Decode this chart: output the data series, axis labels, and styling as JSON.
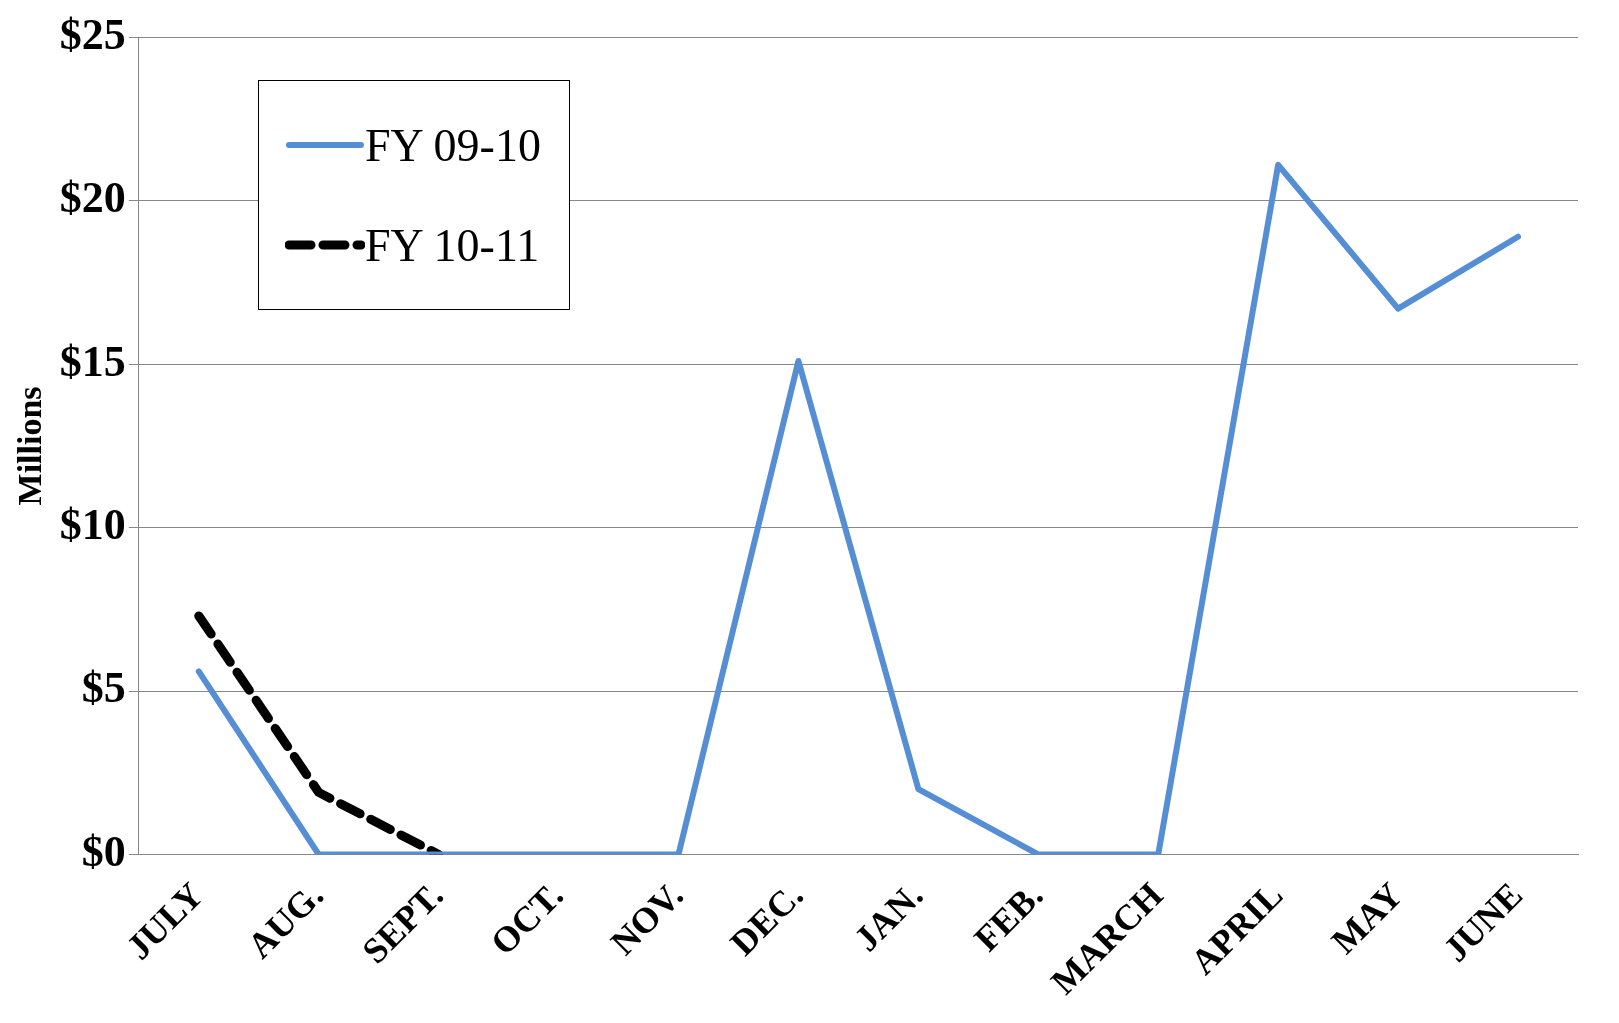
{
  "chart_data": {
    "type": "line",
    "ylabel": "Millions",
    "categories": [
      "JULY",
      "AUG.",
      "SEPT.",
      "OCT.",
      "NOV.",
      "DEC.",
      "JAN.",
      "FEB.",
      "MARCH",
      "APRIL",
      "MAY",
      "JUNE"
    ],
    "series": [
      {
        "name": "FY 09-10",
        "color": "#558ed5",
        "values": [
          5.6,
          0,
          0,
          0,
          0,
          15.1,
          2.0,
          0,
          0,
          21.1,
          16.7,
          18.9
        ],
        "line_style": "solid"
      },
      {
        "name": "FY 10-11",
        "color": "#000000",
        "values": [
          7.3,
          1.9,
          0,
          null,
          null,
          null,
          null,
          null,
          null,
          null,
          null,
          null
        ],
        "line_style": "dashed"
      }
    ],
    "ylim": [
      0,
      25
    ],
    "yticks": [
      {
        "value": 0,
        "label": "$0"
      },
      {
        "value": 5,
        "label": "$5"
      },
      {
        "value": 10,
        "label": "$10"
      },
      {
        "value": 15,
        "label": "$15"
      },
      {
        "value": 20,
        "label": "$20"
      },
      {
        "value": 25,
        "label": "$25"
      }
    ],
    "grid": "y",
    "legend": "top left",
    "marker": "none"
  }
}
